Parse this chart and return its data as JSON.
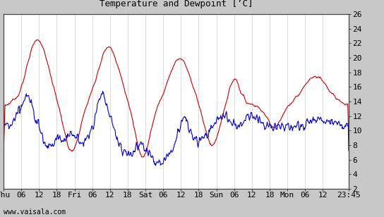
{
  "title": "Temperature and Dewpoint [’C]",
  "x_tick_labels": [
    "Thu",
    "06",
    "12",
    "18",
    "Fri",
    "06",
    "12",
    "18",
    "Sat",
    "06",
    "12",
    "18",
    "Sun",
    "06",
    "12",
    "18",
    "Mon",
    "06",
    "12",
    "23:45"
  ],
  "x_tick_positions": [
    0,
    6,
    12,
    18,
    24,
    30,
    36,
    42,
    48,
    54,
    60,
    66,
    72,
    78,
    84,
    90,
    96,
    102,
    108,
    116.75
  ],
  "ylim": [
    2,
    26
  ],
  "yticks": [
    2,
    4,
    6,
    8,
    10,
    12,
    14,
    16,
    18,
    20,
    22,
    24,
    26
  ],
  "xlim": [
    0,
    116.75
  ],
  "total_hours": 116.75,
  "bg_color": "#c8c8c8",
  "plot_bg_color": "#ffffff",
  "temp_color": "#cc0000",
  "dewpoint_color": "#0000cc",
  "line_width": 0.8,
  "watermark": "www.vaisala.com",
  "grid_color": "#cccccc",
  "grid_linewidth": 0.5,
  "title_fontsize": 9,
  "tick_fontsize": 8
}
